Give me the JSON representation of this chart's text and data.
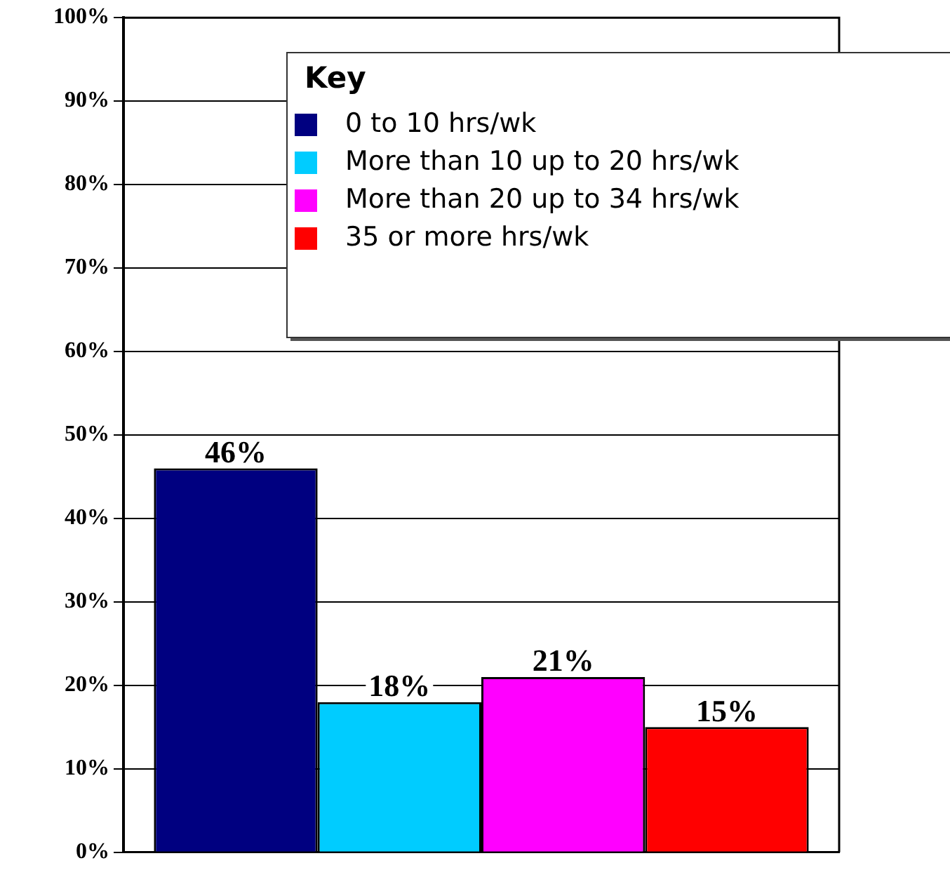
{
  "chart_data": {
    "type": "bar",
    "categories": [
      null
    ],
    "series": [
      {
        "name": "0 to 10 hrs/wk",
        "color": "#000080",
        "values": [
          46
        ],
        "value_labels": [
          "46%"
        ]
      },
      {
        "name": "More than 10 up to 20 hrs/wk",
        "color": "#00ccff",
        "values": [
          18
        ],
        "value_labels": [
          "18%"
        ]
      },
      {
        "name": "More than 20 up to 34 hrs/wk",
        "color": "#ff00ff",
        "values": [
          21
        ],
        "value_labels": [
          "21%"
        ]
      },
      {
        "name": "35 or more hrs/wk",
        "color": "#ff0000",
        "values": [
          15
        ],
        "value_labels": [
          "15%"
        ]
      }
    ],
    "legend_title": "Key",
    "legend": "top right",
    "grid": "y",
    "ylim": [
      0,
      100
    ],
    "yticks": [
      {
        "value": 0,
        "label": "0%"
      },
      {
        "value": 10,
        "label": "10%"
      },
      {
        "value": 20,
        "label": "20%"
      },
      {
        "value": 30,
        "label": "30%"
      },
      {
        "value": 40,
        "label": "40%"
      },
      {
        "value": 50,
        "label": "50%"
      },
      {
        "value": 60,
        "label": "60%"
      },
      {
        "value": 70,
        "label": "70%"
      },
      {
        "value": 80,
        "label": "80%"
      },
      {
        "value": 90,
        "label": "90%"
      },
      {
        "value": 100,
        "label": "100%"
      }
    ]
  }
}
